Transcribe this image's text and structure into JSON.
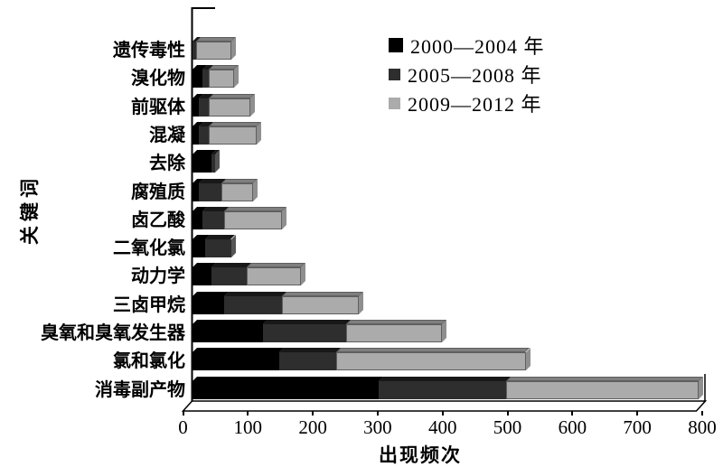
{
  "figure": {
    "ylabel": "关键词",
    "xlabel": "出现频次"
  },
  "legend": [
    {
      "label": "2000—2004 年",
      "color": "#000000"
    },
    {
      "label": "2005—2008 年",
      "color": "#2e2e2e"
    },
    {
      "label": "2009—2012 年",
      "color": "#ababab"
    }
  ],
  "chart_data": {
    "type": "bar",
    "orientation": "horizontal",
    "stacked": true,
    "title": "",
    "xlabel": "出现频次",
    "ylabel": "关键词",
    "xlim": [
      0,
      800
    ],
    "xticks": [
      0,
      100,
      200,
      300,
      400,
      500,
      600,
      700,
      800
    ],
    "grid": false,
    "legend_position": "upper-center-right",
    "categories": [
      "遗传毒性",
      "溴化物",
      "前驱体",
      "混凝",
      "去除",
      "腐殖质",
      "卤乙酸",
      "二氧化氯",
      "动力学",
      "三卤甲烷",
      "臭氧和臭氧发生器",
      "氯和氯化",
      "消毒副产物"
    ],
    "series": [
      {
        "name": "2000—2004 年",
        "color": "#000000",
        "values": [
          0,
          15,
          10,
          10,
          30,
          10,
          15,
          20,
          30,
          50,
          110,
          135,
          290
        ]
      },
      {
        "name": "2005—2008 年",
        "color": "#2e2e2e",
        "values": [
          5,
          10,
          15,
          15,
          5,
          35,
          35,
          40,
          55,
          90,
          130,
          90,
          200
        ]
      },
      {
        "name": "2009—2012 年",
        "color": "#ababab",
        "values": [
          55,
          40,
          65,
          75,
          0,
          50,
          90,
          0,
          85,
          120,
          150,
          295,
          300
        ]
      }
    ],
    "totals": [
      60,
      65,
      90,
      100,
      35,
      95,
      140,
      60,
      170,
      260,
      390,
      520,
      790
    ]
  }
}
